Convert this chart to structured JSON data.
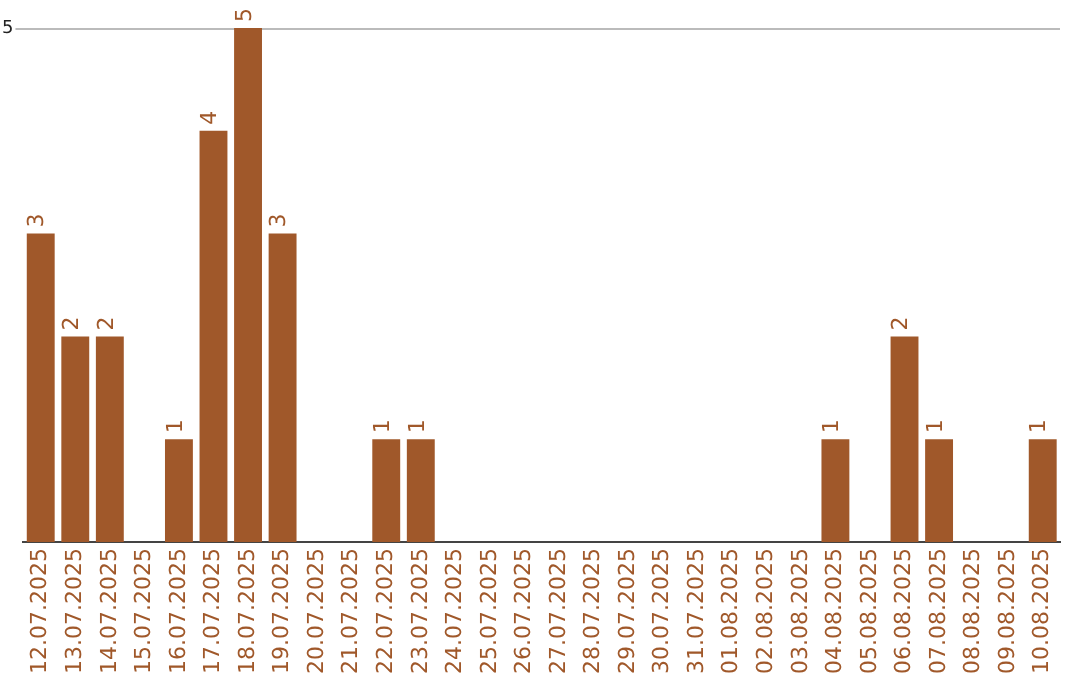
{
  "chart_data": {
    "type": "bar",
    "categories": [
      "12.07.2025",
      "13.07.2025",
      "14.07.2025",
      "15.07.2025",
      "16.07.2025",
      "17.07.2025",
      "18.07.2025",
      "19.07.2025",
      "20.07.2025",
      "21.07.2025",
      "22.07.2025",
      "23.07.2025",
      "24.07.2025",
      "25.07.2025",
      "26.07.2025",
      "27.07.2025",
      "28.07.2025",
      "29.07.2025",
      "30.07.2025",
      "31.07.2025",
      "01.08.2025",
      "02.08.2025",
      "03.08.2025",
      "04.08.2025",
      "05.08.2025",
      "06.08.2025",
      "07.08.2025",
      "08.08.2025",
      "09.08.2025",
      "10.08.2025"
    ],
    "values": [
      3,
      2,
      2,
      0,
      1,
      4,
      5,
      3,
      0,
      0,
      1,
      1,
      0,
      0,
      0,
      0,
      0,
      0,
      0,
      0,
      0,
      0,
      0,
      1,
      0,
      2,
      1,
      0,
      0,
      1
    ],
    "value_labels": [
      "3",
      "2",
      "2",
      null,
      "1",
      "4",
      "5",
      "3",
      null,
      null,
      "1",
      "1",
      null,
      null,
      null,
      null,
      null,
      null,
      null,
      null,
      null,
      null,
      null,
      "1",
      null,
      "2",
      "1",
      null,
      null,
      "1"
    ],
    "color": "#a0582a",
    "ylim": [
      0,
      5
    ],
    "yticks": [
      5
    ],
    "grid": false,
    "legend": false
  }
}
